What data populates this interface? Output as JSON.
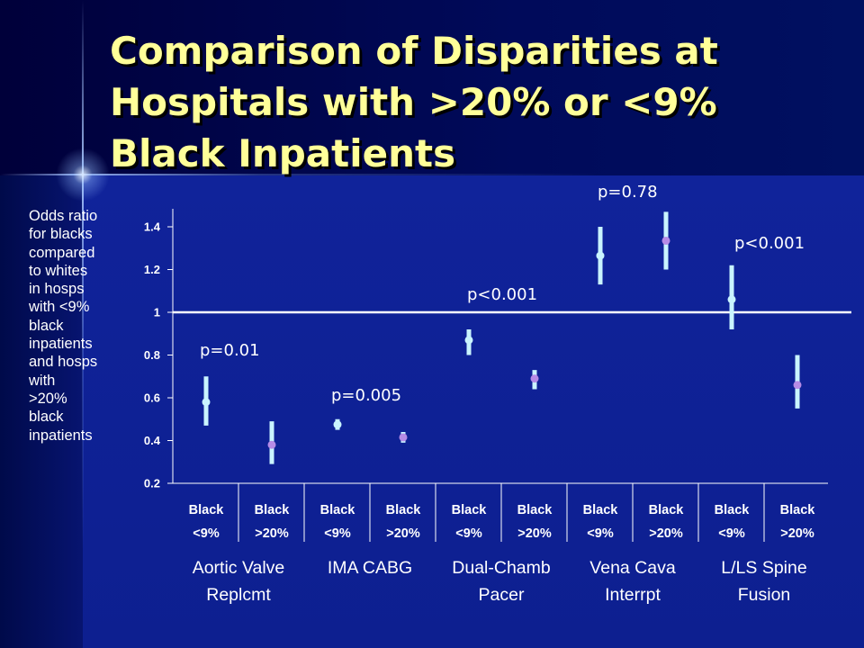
{
  "title_lines": [
    "Comparison of Disparities at",
    "Hospitals with >20% or <9%",
    "Black Inpatients"
  ],
  "colors": {
    "title": "#ffff99",
    "background": "#0d1c8c",
    "error_bar": "#c9f4ff",
    "point_low": "#c9f4ff",
    "point_high": "#b68be6",
    "reference_line": "#ffffff",
    "text": "#ffffff"
  },
  "chart_data": {
    "type": "scatter",
    "ylabel_lines": [
      "Odds ratio",
      "for blacks",
      "compared",
      "to whites",
      "in hosps",
      "with <9%",
      "black",
      "inpatients",
      "and hosps",
      "with",
      ">20%",
      "black",
      "inpatients"
    ],
    "ylim": [
      0.2,
      1.4
    ],
    "yticks": [
      0.2,
      0.4,
      0.6,
      0.8,
      1,
      1.2,
      1.4
    ],
    "ytick_labels": [
      "0.2",
      "0.4",
      "0.6",
      "0.8",
      "1",
      "1.2",
      "1.4"
    ],
    "reference_line": 1,
    "grid": false,
    "legend": "none",
    "categories": [
      {
        "line1": "Black",
        "line2": "<9%"
      },
      {
        "line1": "Black",
        "line2": ">20%"
      },
      {
        "line1": "Black",
        "line2": "<9%"
      },
      {
        "line1": "Black",
        "line2": ">20%"
      },
      {
        "line1": "Black",
        "line2": "<9%"
      },
      {
        "line1": "Black",
        "line2": ">20%"
      },
      {
        "line1": "Black",
        "line2": "<9%"
      },
      {
        "line1": "Black",
        "line2": ">20%"
      },
      {
        "line1": "Black",
        "line2": "<9%"
      },
      {
        "line1": "Black",
        "line2": ">20%"
      }
    ],
    "groups": [
      {
        "label_lines": [
          "Aortic Valve",
          "Replcmt"
        ],
        "p_value": "p=0.01"
      },
      {
        "label_lines": [
          "IMA CABG",
          ""
        ],
        "p_value": "p=0.005"
      },
      {
        "label_lines": [
          "Dual-Chamb",
          "Pacer"
        ],
        "p_value": "p<0.001"
      },
      {
        "label_lines": [
          "Vena Cava",
          "Interrpt"
        ],
        "p_value": "p=0.78"
      },
      {
        "label_lines": [
          "L/LS Spine",
          "Fusion"
        ],
        "p_value": "p<0.001"
      }
    ],
    "points": [
      {
        "category": 0,
        "estimate": 0.58,
        "lower": 0.47,
        "upper": 0.7,
        "hospital_type": "<9%"
      },
      {
        "category": 1,
        "estimate": 0.38,
        "lower": 0.29,
        "upper": 0.49,
        "hospital_type": ">20%"
      },
      {
        "category": 2,
        "estimate": 0.475,
        "lower": 0.45,
        "upper": 0.5,
        "hospital_type": "<9%"
      },
      {
        "category": 3,
        "estimate": 0.415,
        "lower": 0.39,
        "upper": 0.44,
        "hospital_type": ">20%"
      },
      {
        "category": 4,
        "estimate": 0.87,
        "lower": 0.8,
        "upper": 0.92,
        "hospital_type": "<9%"
      },
      {
        "category": 5,
        "estimate": 0.69,
        "lower": 0.64,
        "upper": 0.73,
        "hospital_type": ">20%"
      },
      {
        "category": 6,
        "estimate": 1.265,
        "lower": 1.13,
        "upper": 1.4,
        "hospital_type": "<9%"
      },
      {
        "category": 7,
        "estimate": 1.335,
        "lower": 1.2,
        "upper": 1.47,
        "hospital_type": ">20%"
      },
      {
        "category": 8,
        "estimate": 1.06,
        "lower": 0.92,
        "upper": 1.22,
        "hospital_type": "<9%"
      },
      {
        "category": 9,
        "estimate": 0.66,
        "lower": 0.55,
        "upper": 0.8,
        "hospital_type": ">20%"
      }
    ]
  }
}
